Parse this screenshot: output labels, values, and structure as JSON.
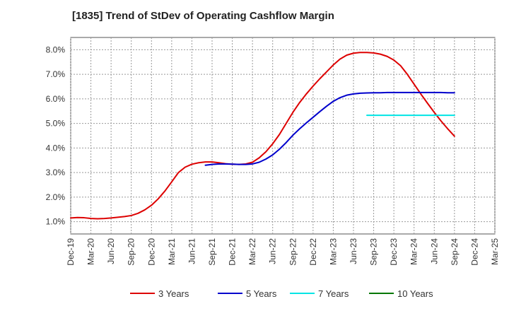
{
  "chart_data": {
    "type": "line",
    "title": "[1835]  Trend of StDev of Operating Cashflow Margin",
    "xlabel": "",
    "ylabel": "",
    "categories": [
      "Dec-19",
      "Mar-20",
      "Jun-20",
      "Sep-20",
      "Dec-20",
      "Mar-21",
      "Jun-21",
      "Sep-21",
      "Dec-21",
      "Mar-22",
      "Jun-22",
      "Sep-22",
      "Dec-22",
      "Mar-23",
      "Jun-23",
      "Sep-23",
      "Dec-23",
      "Mar-24",
      "Jun-24",
      "Sep-24",
      "Dec-24",
      "Mar-25"
    ],
    "ylim": [
      0.5,
      8.5
    ],
    "yticks": [
      1.0,
      2.0,
      3.0,
      4.0,
      5.0,
      6.0,
      7.0,
      8.0
    ],
    "ytick_labels": [
      "1.0%",
      "2.0%",
      "3.0%",
      "4.0%",
      "5.0%",
      "6.0%",
      "7.0%",
      "8.0%"
    ],
    "grid": true,
    "legend_position": "bottom",
    "series": [
      {
        "name": "3 Years",
        "color": "#dd0000",
        "x": [
          "Dec-19",
          "Jan-20",
          "Feb-20",
          "Mar-20",
          "Apr-20",
          "May-20",
          "Jun-20",
          "Jul-20",
          "Aug-20",
          "Sep-20",
          "Oct-20",
          "Nov-20",
          "Dec-20",
          "Jan-21",
          "Feb-21",
          "Mar-21",
          "Apr-21",
          "May-21",
          "Jun-21",
          "Jul-21",
          "Aug-21",
          "Sep-21",
          "Oct-21",
          "Nov-21",
          "Dec-21",
          "Jan-22",
          "Feb-22",
          "Mar-22",
          "Apr-22",
          "May-22",
          "Jun-22",
          "Jul-22",
          "Aug-22",
          "Sep-22",
          "Oct-22",
          "Nov-22",
          "Dec-22",
          "Jan-23",
          "Feb-23",
          "Mar-23",
          "Apr-23",
          "May-23",
          "Jun-23",
          "Jul-23",
          "Aug-23",
          "Sep-23",
          "Oct-23",
          "Nov-23",
          "Dec-23",
          "Jan-24",
          "Feb-24",
          "Mar-24",
          "Apr-24",
          "May-24",
          "Jun-24",
          "Jul-24",
          "Aug-24",
          "Sep-24"
        ],
        "values": [
          1.15,
          1.17,
          1.16,
          1.13,
          1.12,
          1.13,
          1.15,
          1.18,
          1.21,
          1.25,
          1.34,
          1.48,
          1.67,
          1.93,
          2.25,
          2.62,
          3.0,
          3.22,
          3.34,
          3.4,
          3.43,
          3.43,
          3.4,
          3.36,
          3.34,
          3.33,
          3.35,
          3.42,
          3.6,
          3.85,
          4.17,
          4.55,
          5.0,
          5.45,
          5.85,
          6.2,
          6.52,
          6.82,
          7.1,
          7.38,
          7.62,
          7.78,
          7.86,
          7.89,
          7.89,
          7.87,
          7.82,
          7.73,
          7.58,
          7.35,
          7.0,
          6.6,
          6.2,
          5.82,
          5.45,
          5.1,
          4.78,
          4.48
        ]
      },
      {
        "name": "5 Years",
        "color": "#0000cc",
        "x": [
          "Aug-21",
          "Sep-21",
          "Oct-21",
          "Nov-21",
          "Dec-21",
          "Jan-22",
          "Feb-22",
          "Mar-22",
          "Apr-22",
          "May-22",
          "Jun-22",
          "Jul-22",
          "Aug-22",
          "Sep-22",
          "Oct-22",
          "Nov-22",
          "Dec-22",
          "Jan-23",
          "Feb-23",
          "Mar-23",
          "Apr-23",
          "May-23",
          "Jun-23",
          "Jul-23",
          "Aug-23",
          "Sep-23",
          "Oct-23",
          "Nov-23",
          "Dec-23",
          "Jan-24",
          "Feb-24",
          "Mar-24",
          "Apr-24",
          "May-24",
          "Jun-24",
          "Jul-24",
          "Aug-24",
          "Sep-24"
        ],
        "values": [
          3.3,
          3.33,
          3.35,
          3.35,
          3.34,
          3.33,
          3.33,
          3.35,
          3.42,
          3.55,
          3.72,
          3.95,
          4.22,
          4.52,
          4.78,
          5.02,
          5.25,
          5.48,
          5.7,
          5.9,
          6.05,
          6.15,
          6.2,
          6.23,
          6.24,
          6.25,
          6.25,
          6.26,
          6.26,
          6.26,
          6.26,
          6.26,
          6.26,
          6.26,
          6.26,
          6.26,
          6.25,
          6.25
        ]
      },
      {
        "name": "7 Years",
        "color": "#00e5e5",
        "x": [
          "Aug-23",
          "Sep-24"
        ],
        "values": [
          5.33,
          5.33
        ]
      },
      {
        "name": "10 Years",
        "color": "#007700",
        "x": [],
        "values": []
      }
    ]
  }
}
